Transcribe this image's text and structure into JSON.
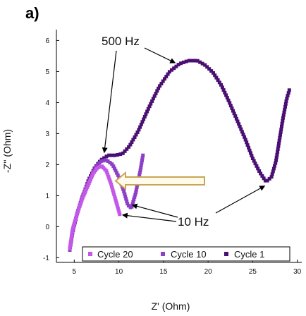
{
  "panel_label": "a)",
  "chart_data": {
    "type": "scatter",
    "title": "",
    "xlabel": "Z' (Ohm)",
    "ylabel": "-Z'' (Ohm)",
    "xlim": [
      3,
      30.5
    ],
    "ylim": [
      -1.15,
      6.35
    ],
    "xticks": [
      5,
      10,
      15,
      20,
      25,
      30
    ],
    "yticks": [
      -1,
      0,
      1,
      2,
      3,
      4,
      5,
      6
    ],
    "legend_position": "bottom-center",
    "series": [
      {
        "name": "Cycle 20",
        "color": "#c357e8",
        "curve": [
          [
            4.5,
            -0.7
          ],
          [
            4.8,
            -0.1
          ],
          [
            5.3,
            0.4
          ],
          [
            5.9,
            0.9
          ],
          [
            6.5,
            1.3
          ],
          [
            7.1,
            1.7
          ],
          [
            7.6,
            1.9
          ],
          [
            8.1,
            1.95
          ],
          [
            8.6,
            1.8
          ],
          [
            9.1,
            1.4
          ],
          [
            9.6,
            0.9
          ],
          [
            9.9,
            0.6
          ],
          [
            10.1,
            0.4
          ]
        ]
      },
      {
        "name": "Cycle 10",
        "color": "#8d3fc6",
        "curve": [
          [
            4.5,
            -0.75
          ],
          [
            4.8,
            -0.2
          ],
          [
            5.3,
            0.4
          ],
          [
            5.9,
            0.95
          ],
          [
            6.6,
            1.45
          ],
          [
            7.3,
            1.85
          ],
          [
            7.9,
            2.1
          ],
          [
            8.6,
            2.15
          ],
          [
            9.3,
            2.0
          ],
          [
            10.0,
            1.6
          ],
          [
            10.6,
            1.1
          ],
          [
            11.0,
            0.7
          ],
          [
            11.4,
            0.6
          ],
          [
            11.9,
            1.1
          ],
          [
            12.4,
            1.8
          ],
          [
            12.7,
            2.3
          ]
        ]
      },
      {
        "name": "Cycle 1",
        "color": "#4a0f72",
        "curve": [
          [
            4.5,
            -0.75
          ],
          [
            4.8,
            -0.2
          ],
          [
            5.3,
            0.4
          ],
          [
            5.9,
            0.95
          ],
          [
            6.6,
            1.5
          ],
          [
            7.3,
            1.9
          ],
          [
            8.0,
            2.15
          ],
          [
            8.8,
            2.3
          ],
          [
            9.6,
            2.3
          ],
          [
            10.4,
            2.35
          ],
          [
            11.2,
            2.6
          ],
          [
            12.2,
            3.1
          ],
          [
            13.3,
            3.8
          ],
          [
            14.5,
            4.5
          ],
          [
            15.7,
            5.0
          ],
          [
            16.8,
            5.25
          ],
          [
            17.8,
            5.35
          ],
          [
            18.8,
            5.35
          ],
          [
            19.7,
            5.2
          ],
          [
            20.6,
            4.95
          ],
          [
            21.5,
            4.55
          ],
          [
            22.4,
            4.0
          ],
          [
            23.3,
            3.4
          ],
          [
            24.2,
            2.8
          ],
          [
            25.0,
            2.2
          ],
          [
            25.8,
            1.75
          ],
          [
            26.5,
            1.45
          ],
          [
            27.1,
            1.6
          ],
          [
            27.6,
            2.1
          ],
          [
            28.0,
            2.8
          ],
          [
            28.4,
            3.5
          ],
          [
            28.8,
            4.1
          ],
          [
            29.1,
            4.4
          ]
        ]
      }
    ],
    "annotations": [
      {
        "text": "500 Hz",
        "point": [
          8.6,
          2.3
        ]
      },
      {
        "text": "10 Hz",
        "point": [
          10.1,
          0.4
        ]
      }
    ],
    "arrow_color": "#c8a658"
  }
}
